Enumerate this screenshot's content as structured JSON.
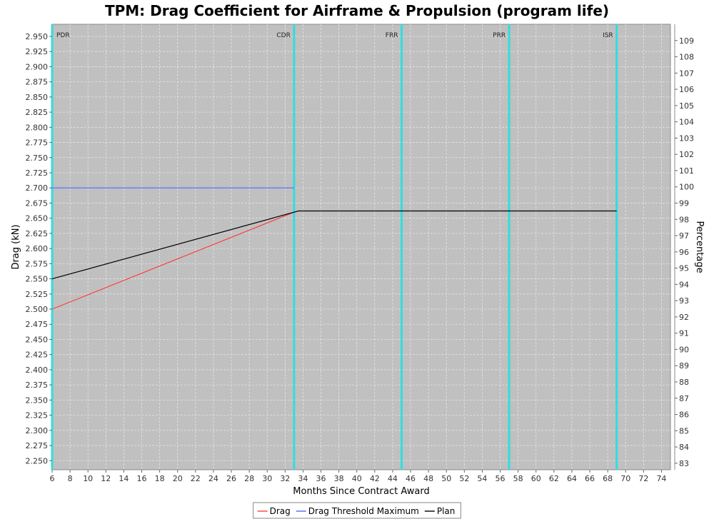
{
  "chart_data": {
    "type": "line",
    "title": "TPM: Drag Coefficient for Airframe & Propulsion (program life)",
    "xlabel": "Months Since Contract Award",
    "ylabel": "Drag (kN)",
    "y2label": "Percentage",
    "xlim": [
      6,
      75
    ],
    "ylim": [
      2.235,
      2.97
    ],
    "y2lim": [
      82.6,
      110.0
    ],
    "x_ticks": [
      6,
      8,
      10,
      12,
      14,
      16,
      18,
      20,
      22,
      24,
      26,
      28,
      30,
      32,
      34,
      36,
      38,
      40,
      42,
      44,
      46,
      48,
      50,
      52,
      54,
      56,
      58,
      60,
      62,
      64,
      66,
      68,
      70,
      72,
      74
    ],
    "y_ticks": [
      "2.250",
      "2.275",
      "2.300",
      "2.325",
      "2.350",
      "2.375",
      "2.400",
      "2.425",
      "2.450",
      "2.475",
      "2.500",
      "2.525",
      "2.550",
      "2.575",
      "2.600",
      "2.625",
      "2.650",
      "2.675",
      "2.700",
      "2.725",
      "2.750",
      "2.775",
      "2.800",
      "2.825",
      "2.850",
      "2.875",
      "2.900",
      "2.925",
      "2.950"
    ],
    "y2_ticks": [
      83,
      84,
      85,
      86,
      87,
      88,
      89,
      90,
      91,
      92,
      93,
      94,
      95,
      96,
      97,
      98,
      99,
      100,
      101,
      102,
      103,
      104,
      105,
      106,
      107,
      108,
      109
    ],
    "grid": true,
    "legend_position": "bottom-center",
    "milestones": [
      {
        "label": "PDR",
        "x": 6
      },
      {
        "label": "CDR",
        "x": 33
      },
      {
        "label": "FRR",
        "x": 45
      },
      {
        "label": "PRR",
        "x": 57
      },
      {
        "label": "ISR",
        "x": 69
      }
    ],
    "series": [
      {
        "name": "Drag",
        "color": "#ff4040",
        "x": [
          6,
          33
        ],
        "y": [
          2.5,
          2.66
        ]
      },
      {
        "name": "Drag Threshold Maximum",
        "color": "#4a6cff",
        "x": [
          6,
          33
        ],
        "y": [
          2.7,
          2.7
        ]
      },
      {
        "name": "Plan",
        "color": "#000000",
        "x": [
          6,
          33,
          33.5,
          69
        ],
        "y": [
          2.55,
          2.66,
          2.662,
          2.662
        ]
      }
    ],
    "colors": {
      "plot_background": "#c0c0c0",
      "milestone_line": "#33dddd",
      "gridline": "#e4e4e4"
    }
  }
}
